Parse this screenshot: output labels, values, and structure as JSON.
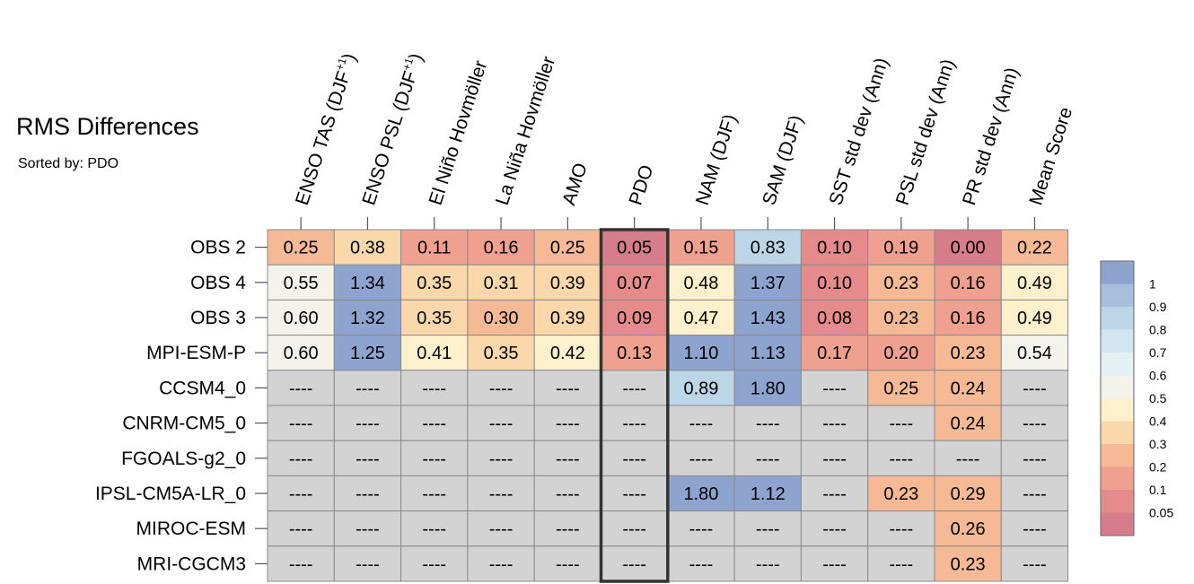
{
  "chart_data": {
    "type": "heatmap",
    "title": "RMS Differences",
    "subtitle": "Sorted by: PDO",
    "columns": [
      {
        "main": "ENSO TAS (DJF",
        "sup": "+1",
        "close": ")"
      },
      {
        "main": "ENSO PSL (DJF",
        "sup": "+1",
        "close": ")"
      },
      {
        "main": "El Niño Hovmöller",
        "sup": "",
        "close": ""
      },
      {
        "main": "La Niña Hovmöller",
        "sup": "",
        "close": ""
      },
      {
        "main": "AMO",
        "sup": "",
        "close": ""
      },
      {
        "main": "PDO",
        "sup": "",
        "close": ""
      },
      {
        "main": "NAM (DJF)",
        "sup": "",
        "close": ""
      },
      {
        "main": "SAM (DJF)",
        "sup": "",
        "close": ""
      },
      {
        "main": "SST std dev (Ann)",
        "sup": "",
        "close": ""
      },
      {
        "main": "PSL std dev (Ann)",
        "sup": "",
        "close": ""
      },
      {
        "main": "PR std dev (Ann)",
        "sup": "",
        "close": ""
      },
      {
        "main": "Mean Score",
        "sup": "",
        "close": ""
      }
    ],
    "highlighted_column": "PDO",
    "rows": [
      "OBS 2",
      "OBS 4",
      "OBS 3",
      "MPI-ESM-P",
      "CCSM4_0",
      "CNRM-CM5_0",
      "FGOALS-g2_0",
      "IPSL-CM5A-LR_0",
      "MIROC-ESM",
      "MRI-CGCM3"
    ],
    "missing_label": "----",
    "values": [
      [
        "0.25",
        "0.38",
        "0.11",
        "0.16",
        "0.25",
        "0.05",
        "0.15",
        "0.83",
        "0.10",
        "0.19",
        "0.00",
        "0.22"
      ],
      [
        "0.55",
        "1.34",
        "0.35",
        "0.31",
        "0.39",
        "0.07",
        "0.48",
        "1.37",
        "0.10",
        "0.23",
        "0.16",
        "0.49"
      ],
      [
        "0.60",
        "1.32",
        "0.35",
        "0.30",
        "0.39",
        "0.09",
        "0.47",
        "1.43",
        "0.08",
        "0.23",
        "0.16",
        "0.49"
      ],
      [
        "0.60",
        "1.25",
        "0.41",
        "0.35",
        "0.42",
        "0.13",
        "1.10",
        "1.13",
        "0.17",
        "0.20",
        "0.23",
        "0.54"
      ],
      [
        null,
        null,
        null,
        null,
        null,
        null,
        "0.89",
        "1.80",
        null,
        "0.25",
        "0.24",
        null
      ],
      [
        null,
        null,
        null,
        null,
        null,
        null,
        null,
        null,
        null,
        null,
        "0.24",
        null
      ],
      [
        null,
        null,
        null,
        null,
        null,
        null,
        null,
        null,
        null,
        null,
        null,
        null
      ],
      [
        null,
        null,
        null,
        null,
        null,
        null,
        "1.80",
        "1.12",
        null,
        "0.23",
        "0.29",
        null
      ],
      [
        null,
        null,
        null,
        null,
        null,
        null,
        null,
        null,
        null,
        null,
        "0.26",
        null
      ],
      [
        null,
        null,
        null,
        null,
        null,
        null,
        null,
        null,
        null,
        null,
        "0.23",
        null
      ]
    ],
    "colorbar": {
      "labels": [
        "1",
        "0.9",
        "0.8",
        "0.7",
        "0.6",
        "0.5",
        "0.4",
        "0.3",
        "0.2",
        "0.1",
        "0.05"
      ],
      "colors": [
        "#8fa3cf",
        "#a8bfdc",
        "#bcd6e8",
        "#d2e5f0",
        "#e5f0f5",
        "#f3f3ec",
        "#fdf0cd",
        "#fad8ac",
        "#f5b996",
        "#f0a08f",
        "#e58b8b",
        "#d77c8a"
      ],
      "missing_color": "#d3d3d3"
    }
  }
}
